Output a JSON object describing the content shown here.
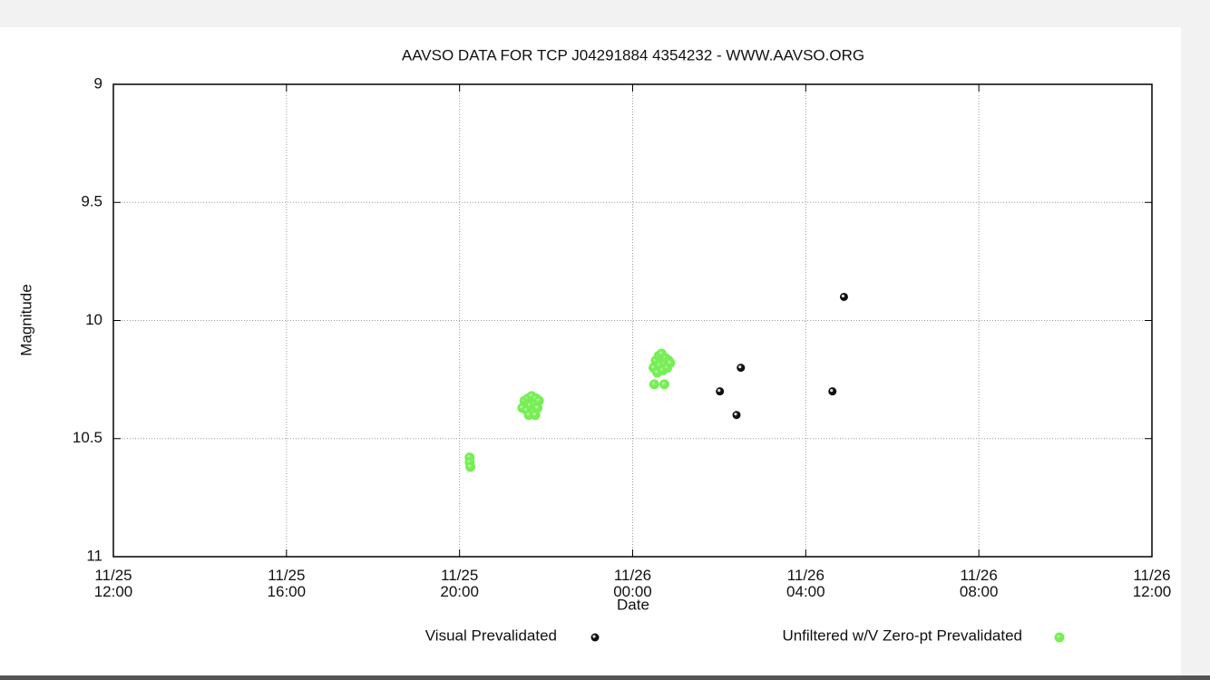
{
  "chart_data": {
    "type": "scatter",
    "title": "AAVSO DATA FOR TCP J04291884 4354232 - WWW.AAVSO.ORG",
    "x_label": "Date",
    "y_label": "Magnitude",
    "xlim": [
      "11/25 12:00",
      "11/26 12:00"
    ],
    "xticks": [
      {
        "value": "11/25 12:00",
        "label": "11/25\n12:00"
      },
      {
        "value": "11/25 16:00",
        "label": "11/25\n16:00"
      },
      {
        "value": "11/25 20:00",
        "label": "11/25\n20:00"
      },
      {
        "value": "11/26 00:00",
        "label": "11/26\n00:00"
      },
      {
        "value": "11/26 04:00",
        "label": "11/26\n04:00"
      },
      {
        "value": "11/26 08:00",
        "label": "11/26\n08:00"
      },
      {
        "value": "11/26 12:00",
        "label": "11/26\n12:00"
      }
    ],
    "ylim": [
      11,
      9
    ],
    "yticks": [
      9,
      9.5,
      10,
      10.5,
      11
    ],
    "grid": true,
    "legend": "bottom",
    "series": [
      {
        "name": "Visual Prevalidated",
        "color": "#111111",
        "x": [
          "11/26 02:01",
          "11/26 02:30",
          "11/26 02:24",
          "11/26 04:37",
          "11/26 04:53"
        ],
        "values": [
          10.3,
          10.2,
          10.4,
          10.3,
          9.9
        ]
      },
      {
        "name": "Unfiltered w/V Zero-pt Prevalidated",
        "color": "#77ee55",
        "x": [
          "11/25 20:14",
          "11/25 20:14",
          "11/25 20:15",
          "11/25 21:27",
          "11/25 21:30",
          "11/25 21:33",
          "11/25 21:35",
          "11/25 21:38",
          "11/25 21:40",
          "11/25 21:42",
          "11/25 21:44",
          "11/25 21:46",
          "11/25 21:48",
          "11/25 21:50",
          "11/25 21:36",
          "11/25 21:45",
          "11/26 00:29",
          "11/26 00:30",
          "11/26 00:32",
          "11/26 00:34",
          "11/26 00:36",
          "11/26 00:38",
          "11/26 00:40",
          "11/26 00:42",
          "11/26 00:44",
          "11/26 00:46",
          "11/26 00:48",
          "11/26 00:50",
          "11/26 00:52",
          "11/26 00:44"
        ],
        "values": [
          10.58,
          10.6,
          10.62,
          10.37,
          10.34,
          10.38,
          10.33,
          10.36,
          10.32,
          10.39,
          10.35,
          10.33,
          10.37,
          10.34,
          10.4,
          10.4,
          10.2,
          10.27,
          10.17,
          10.22,
          10.15,
          10.19,
          10.14,
          10.21,
          10.18,
          10.16,
          10.2,
          10.17,
          10.18,
          10.27
        ]
      }
    ]
  }
}
